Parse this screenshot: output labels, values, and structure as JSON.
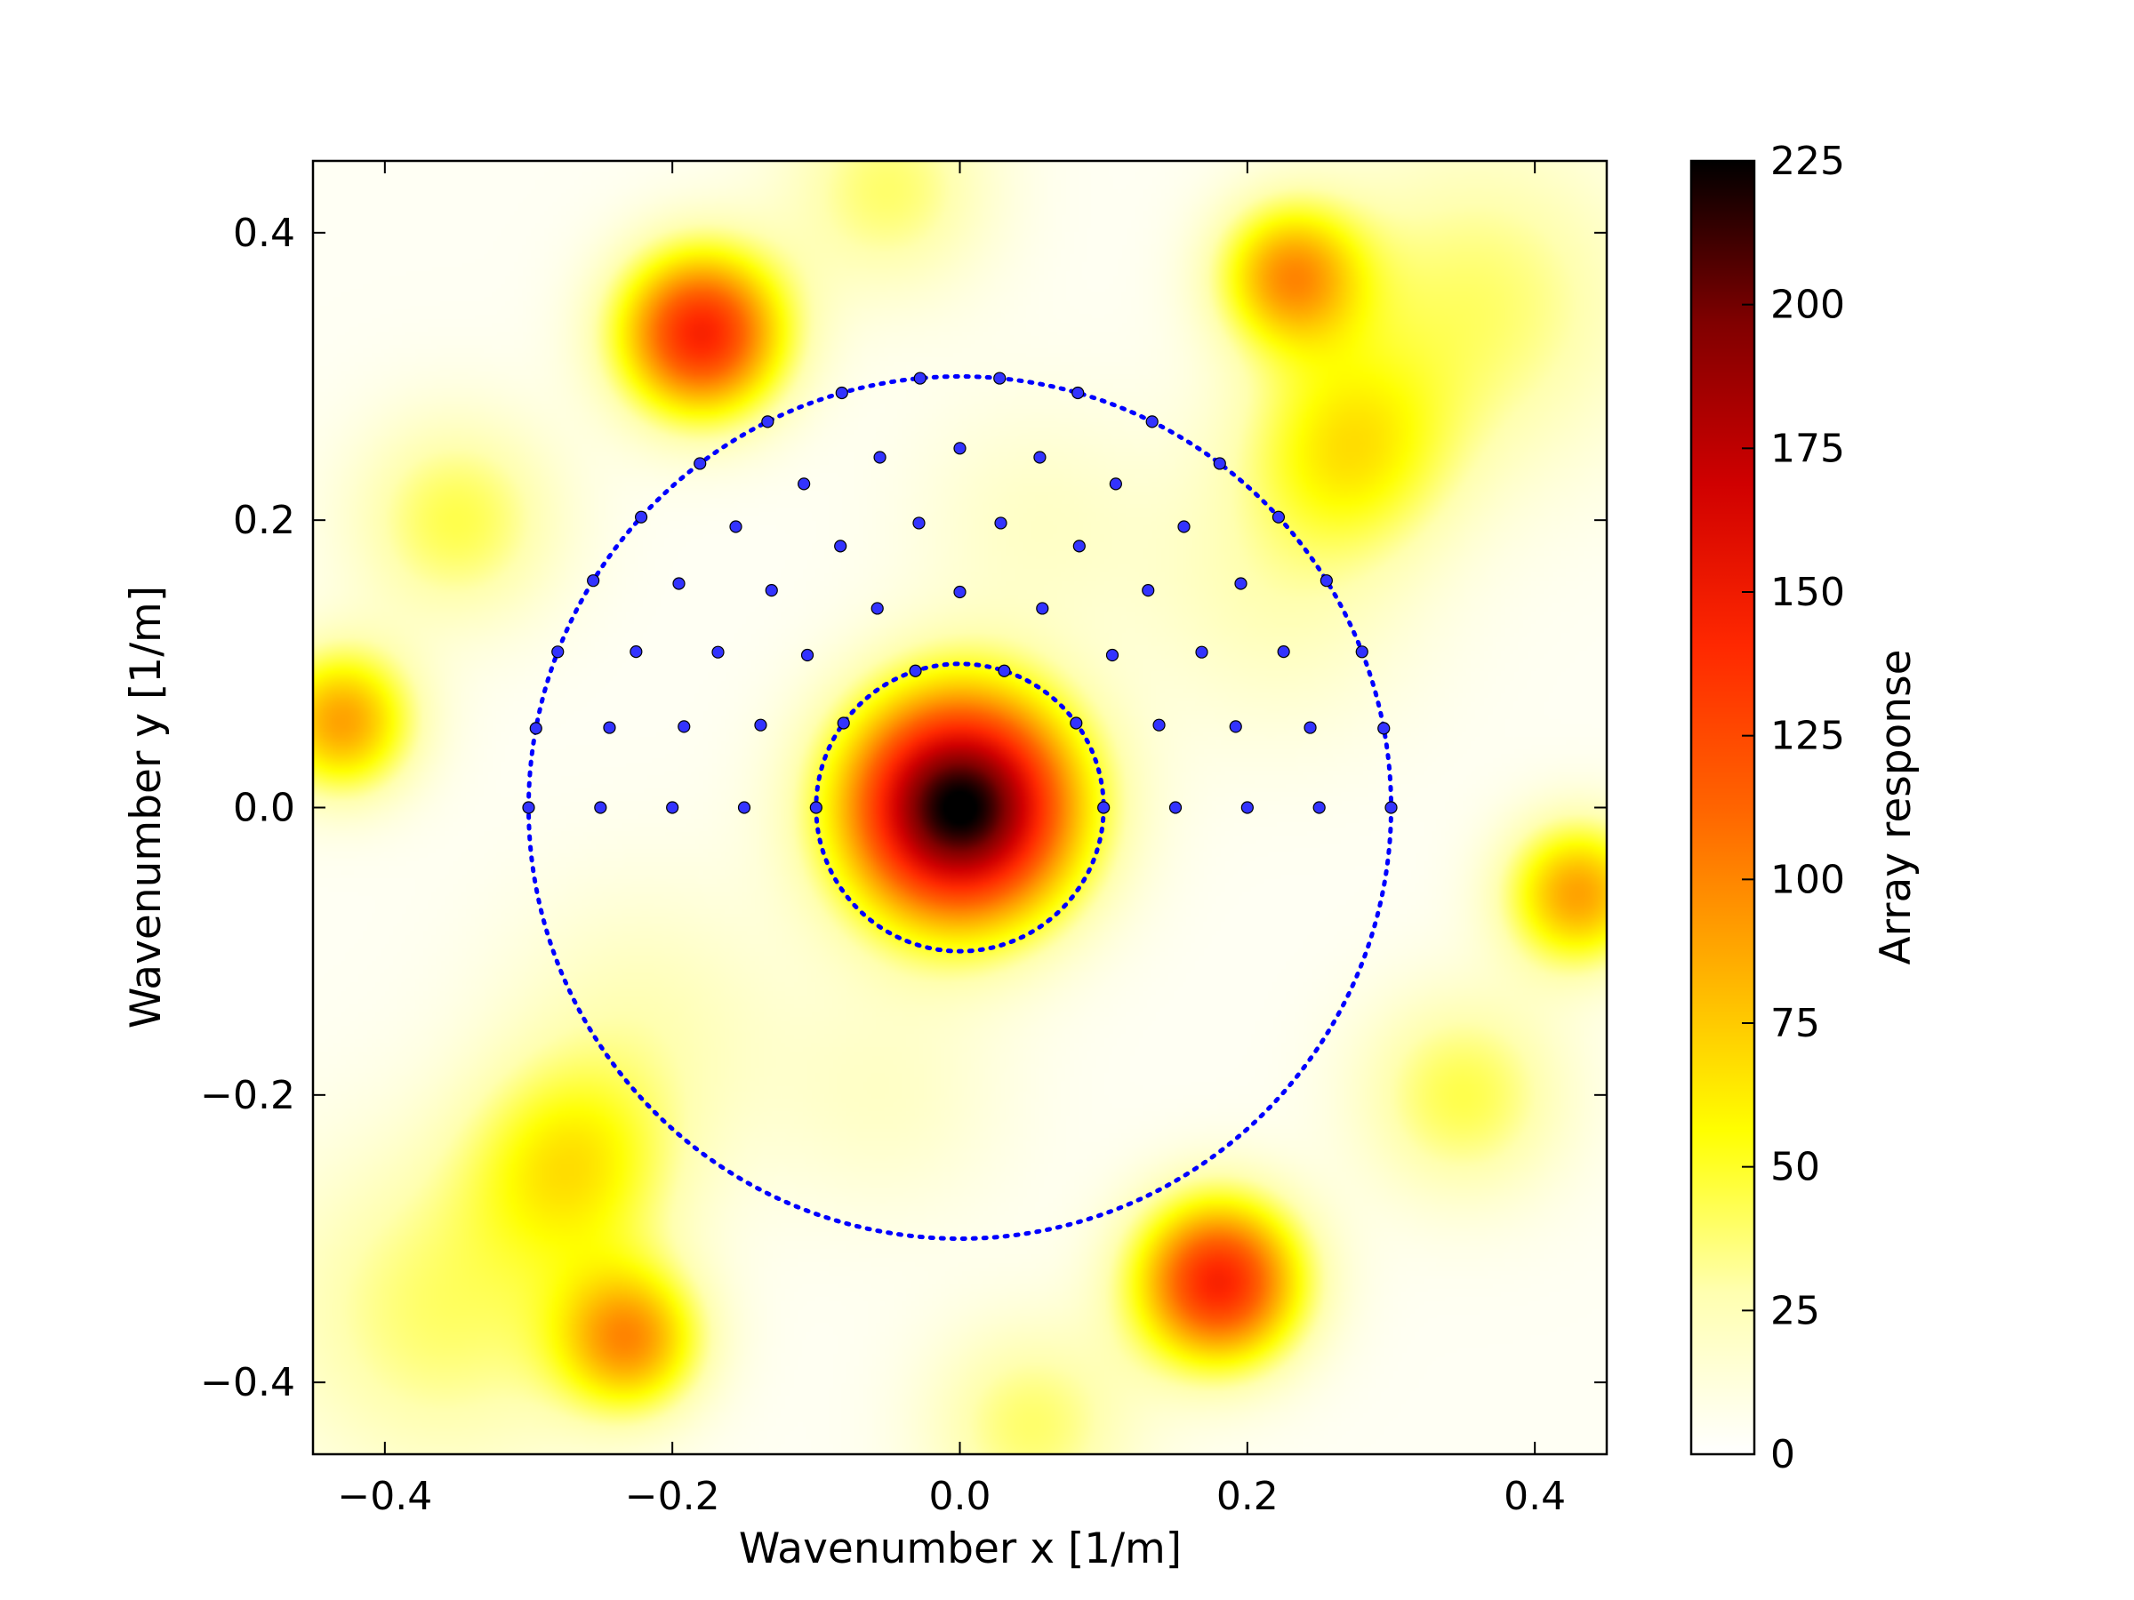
{
  "chart_data": {
    "type": "heatmap",
    "title": "",
    "xlabel": "Wavenumber x [1/m]",
    "ylabel": "Wavenumber y [1/m]",
    "xlim": [
      -0.45,
      0.45
    ],
    "ylim": [
      -0.45,
      0.45
    ],
    "x_ticks": [
      -0.4,
      -0.2,
      0.0,
      0.2,
      0.4
    ],
    "x_tick_labels": [
      "−0.4",
      "−0.2",
      "0.0",
      "0.2",
      "0.4"
    ],
    "y_ticks": [
      -0.4,
      -0.2,
      0.0,
      0.2,
      0.4
    ],
    "y_tick_labels": [
      "−0.4",
      "−0.2",
      "0.0",
      "0.2",
      "0.4"
    ],
    "grid": false,
    "colormap": "afmhot_r (white → yellow → orange → red → black)",
    "colorbar": {
      "label": "Array response",
      "range": [
        0,
        225
      ],
      "ticks": [
        0,
        25,
        50,
        75,
        100,
        125,
        150,
        175,
        200,
        225
      ],
      "tick_labels": [
        "0",
        "25",
        "50",
        "75",
        "100",
        "125",
        "150",
        "175",
        "200",
        "225"
      ],
      "colors": [
        "#ffffff",
        "#ffffb0",
        "#ffff00",
        "#ffb000",
        "#ff6400",
        "#ff2800",
        "#d00000",
        "#800000",
        "#000000"
      ]
    },
    "response_peaks": [
      {
        "kx": 0.0,
        "ky": 0.0,
        "value": 225,
        "width": 0.055
      },
      {
        "kx": -0.18,
        "ky": 0.33,
        "value": 140,
        "width": 0.04
      },
      {
        "kx": 0.18,
        "ky": -0.33,
        "value": 140,
        "width": 0.04
      },
      {
        "kx": 0.23,
        "ky": 0.37,
        "value": 85,
        "width": 0.035
      },
      {
        "kx": -0.23,
        "ky": -0.37,
        "value": 85,
        "width": 0.035
      },
      {
        "kx": 0.43,
        "ky": -0.06,
        "value": 85,
        "width": 0.035
      },
      {
        "kx": -0.43,
        "ky": 0.06,
        "value": 85,
        "width": 0.035
      },
      {
        "kx": 0.27,
        "ky": 0.25,
        "value": 50,
        "width": 0.05
      },
      {
        "kx": -0.27,
        "ky": -0.25,
        "value": 50,
        "width": 0.05
      },
      {
        "kx": -0.35,
        "ky": 0.2,
        "value": 40,
        "width": 0.05
      },
      {
        "kx": 0.35,
        "ky": -0.2,
        "value": 40,
        "width": 0.05
      },
      {
        "kx": 0.36,
        "ky": 0.35,
        "value": 35,
        "width": 0.08
      },
      {
        "kx": -0.36,
        "ky": -0.35,
        "value": 35,
        "width": 0.08
      },
      {
        "kx": -0.22,
        "ky": -0.15,
        "value": 20,
        "width": 0.07
      },
      {
        "kx": 0.22,
        "ky": 0.15,
        "value": 20,
        "width": 0.07
      },
      {
        "kx": 0.05,
        "ky": -0.43,
        "value": 35,
        "width": 0.05
      },
      {
        "kx": -0.05,
        "ky": 0.43,
        "value": 35,
        "width": 0.05
      },
      {
        "kx": 0.05,
        "ky": 0.2,
        "value": 15,
        "width": 0.06
      },
      {
        "kx": -0.05,
        "ky": -0.2,
        "value": 15,
        "width": 0.06
      }
    ],
    "limit_circles": [
      {
        "radius": 0.1,
        "color": "#0000ff",
        "style": "dotted"
      },
      {
        "radius": 0.3,
        "color": "#0000ff",
        "style": "dotted"
      }
    ],
    "sampling_grid": {
      "marker_color": "#3333ff",
      "rings": [
        {
          "radius": 0.1,
          "count": 6
        },
        {
          "radius": 0.15,
          "count": 9
        },
        {
          "radius": 0.2,
          "count": 12
        },
        {
          "radius": 0.25,
          "count": 15
        },
        {
          "radius": 0.3,
          "count": 18
        }
      ],
      "angle_range_deg": [
        0,
        180
      ]
    }
  }
}
